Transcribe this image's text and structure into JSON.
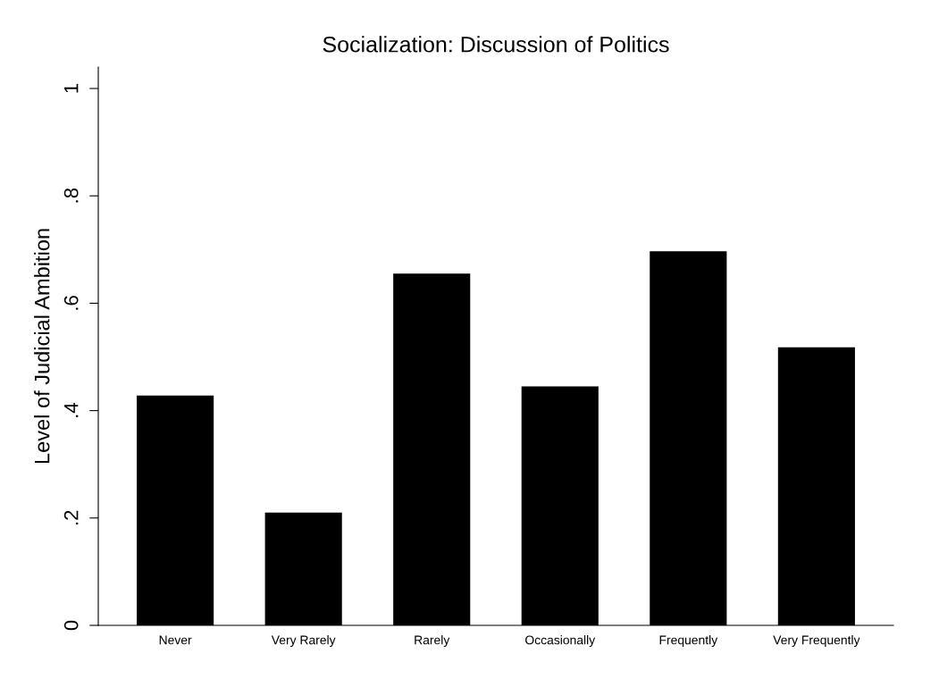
{
  "chart_data": {
    "type": "bar",
    "title": "Socialization: Discussion of Politics",
    "ylabel": "Level of Judicial Ambition",
    "categories": [
      "Never",
      "Very Rarely",
      "Rarely",
      "Occasionally",
      "Frequently",
      "Very Frequently"
    ],
    "values": [
      0.428,
      0.21,
      0.655,
      0.445,
      0.697,
      0.518
    ],
    "color": "#000000",
    "ylim": [
      0,
      1.04
    ],
    "yticks": [
      {
        "value": 0,
        "label": "0"
      },
      {
        "value": 0.2,
        "label": ".2"
      },
      {
        "value": 0.4,
        "label": ".4"
      },
      {
        "value": 0.6,
        "label": ".6"
      },
      {
        "value": 0.8,
        "label": ".8"
      },
      {
        "value": 1,
        "label": "1"
      }
    ],
    "grid": false
  }
}
